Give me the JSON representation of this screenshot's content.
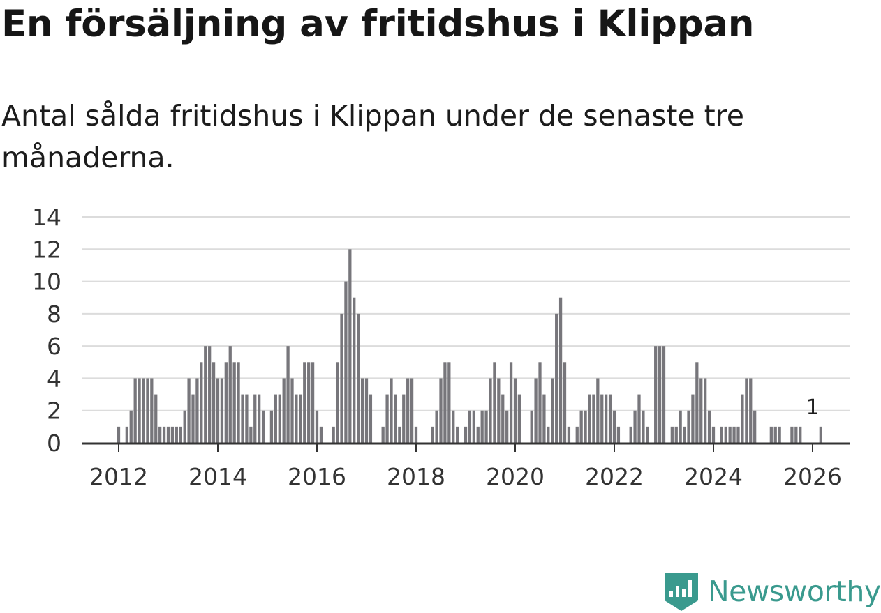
{
  "title": "En försäljning av fritidshus i Klippan",
  "subtitle": "Antal sålda fritidshus i Klippan under de senaste tre månaderna.",
  "brand": "Newsworthy",
  "colors": {
    "bar": "#77767b",
    "highlight": "#1fa898",
    "grid": "#dcdcdc",
    "axis": "#333333",
    "brand": "#3a9a8e"
  },
  "chart_data": {
    "type": "bar",
    "title": "En försäljning av fritidshus i Klippan",
    "xlabel": "",
    "ylabel": "",
    "x_start": 2012.0,
    "x_step_months": 1,
    "ylim": [
      0,
      14
    ],
    "yticks": [
      0,
      2,
      4,
      6,
      8,
      10,
      12,
      14
    ],
    "xticks": [
      2012,
      2014,
      2016,
      2018,
      2020,
      2022,
      2024,
      2026
    ],
    "grid": true,
    "values": [
      1,
      0,
      1,
      2,
      4,
      4,
      4,
      4,
      4,
      3,
      1,
      1,
      1,
      1,
      1,
      1,
      2,
      4,
      3,
      4,
      5,
      6,
      6,
      5,
      4,
      4,
      5,
      6,
      5,
      5,
      3,
      3,
      1,
      3,
      3,
      2,
      0,
      2,
      3,
      3,
      4,
      6,
      4,
      3,
      3,
      5,
      5,
      5,
      2,
      1,
      0,
      0,
      1,
      5,
      8,
      10,
      12,
      9,
      8,
      4,
      4,
      3,
      0,
      0,
      1,
      3,
      4,
      3,
      1,
      3,
      4,
      4,
      1,
      0,
      0,
      0,
      1,
      2,
      4,
      5,
      5,
      2,
      1,
      0,
      1,
      2,
      2,
      1,
      2,
      2,
      4,
      5,
      4,
      3,
      2,
      5,
      4,
      3,
      0,
      0,
      2,
      4,
      5,
      3,
      1,
      4,
      8,
      9,
      5,
      1,
      0,
      1,
      2,
      2,
      3,
      3,
      4,
      3,
      3,
      3,
      2,
      1,
      0,
      0,
      1,
      2,
      3,
      2,
      1,
      0,
      6,
      6,
      6,
      0,
      1,
      1,
      2,
      1,
      2,
      3,
      5,
      4,
      4,
      2,
      1,
      0,
      1,
      1,
      1,
      1,
      1,
      3,
      4,
      4,
      2,
      0,
      0,
      0,
      1,
      1,
      1,
      0,
      0,
      1,
      1,
      1,
      0,
      0,
      0,
      0,
      1
    ],
    "highlight": {
      "label": "1",
      "value": 1,
      "x": 2026.0
    }
  }
}
